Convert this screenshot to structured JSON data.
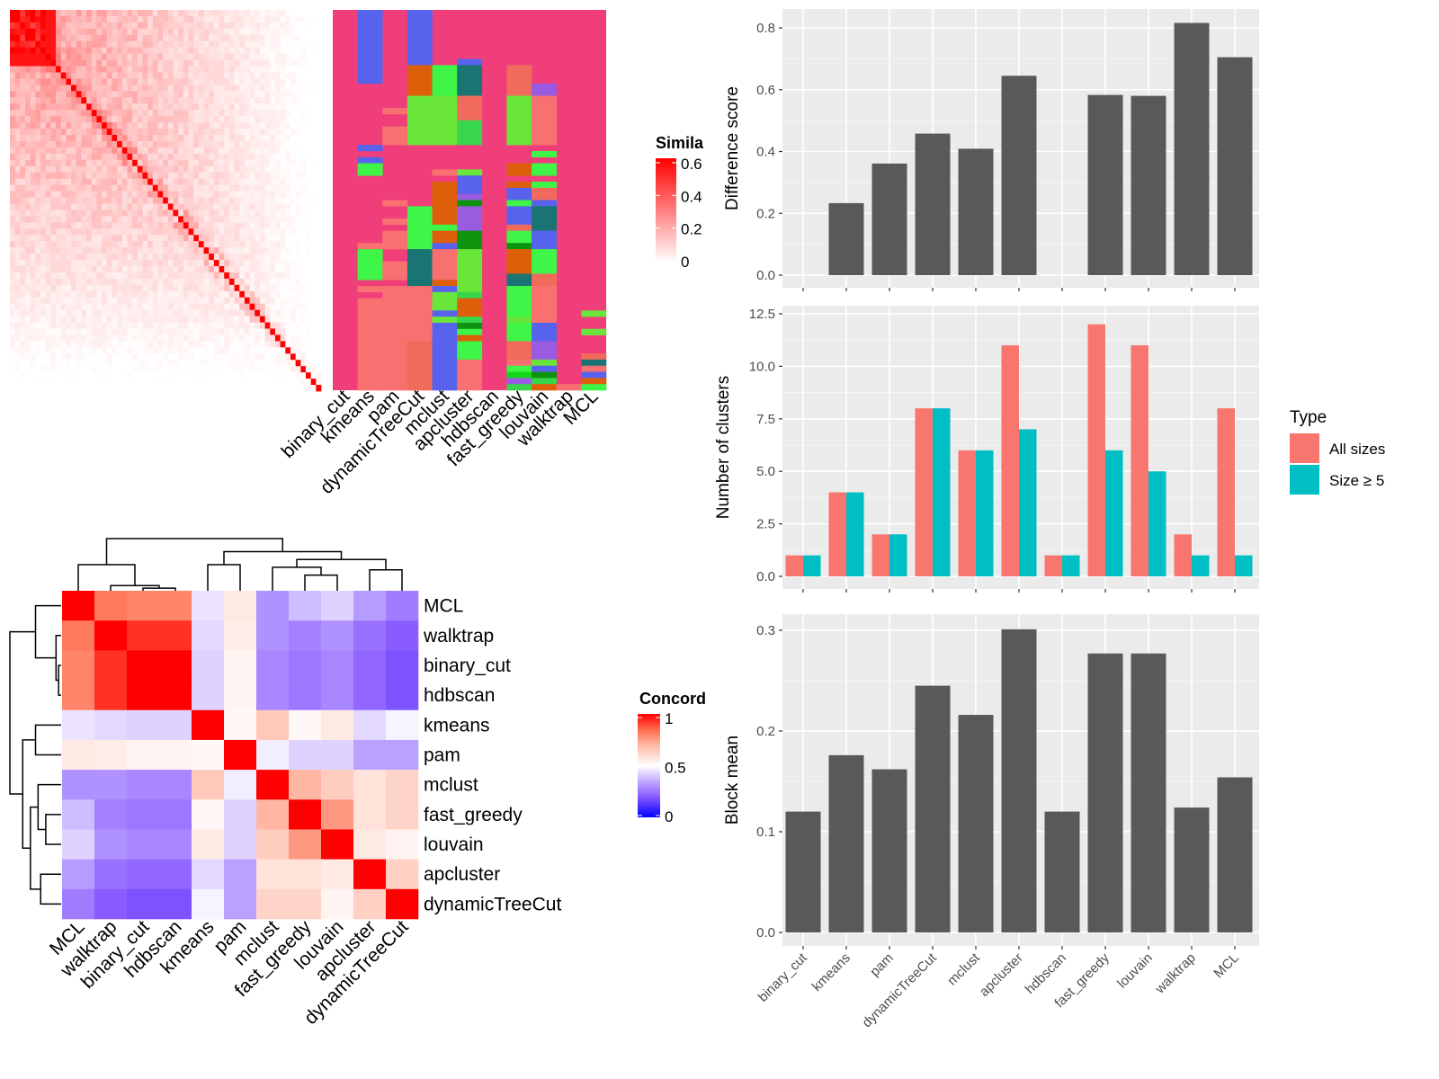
{
  "chart_data": [
    {
      "type": "heatmap",
      "id": "similarity",
      "legend": {
        "title": "Simila",
        "ticks": [
          "0",
          "0.2",
          "0.4",
          "0.6"
        ],
        "tick_values": [
          0,
          0.2,
          0.4,
          0.6
        ],
        "low_color": "#ffffff",
        "high_color": "#ff0000"
      }
    },
    {
      "type": "heatmap",
      "id": "cluster_membership",
      "columns": [
        "binary_cut",
        "kmeans",
        "pam",
        "dynamicTreeCut",
        "mclust",
        "apcluster",
        "hdbscan",
        "fast_greedy",
        "louvain",
        "walktrap",
        "MCL"
      ],
      "rows": 62,
      "background_color": "#f03e7a",
      "palette": {
        "B": "#5763ec",
        "O": "#de5f0a",
        "G": "#3ff547",
        "T": "#1a7474",
        "S": "#f06b5c",
        "L": "#6ae63a",
        "M": "#37d64b",
        "V": "#995be0",
        "D": "#0e930e",
        "R": "#f87070",
        "E": "#16d716"
      },
      "segments": [
        [],
        [
          [
            0,
            12,
            "B"
          ],
          [
            22,
            23,
            "B"
          ],
          [
            24,
            25,
            "B"
          ],
          [
            25,
            27,
            "G"
          ],
          [
            38,
            39,
            "R"
          ],
          [
            39,
            44,
            "G"
          ],
          [
            45,
            46,
            "R"
          ],
          [
            47,
            62,
            "R"
          ]
        ],
        [
          [
            16,
            17,
            "R"
          ],
          [
            19,
            22,
            "R"
          ],
          [
            31,
            32,
            "R"
          ],
          [
            34,
            35,
            "R"
          ],
          [
            36,
            39,
            "R"
          ],
          [
            41,
            44,
            "R"
          ],
          [
            45,
            62,
            "R"
          ]
        ],
        [
          [
            0,
            9,
            "B"
          ],
          [
            9,
            14,
            "O"
          ],
          [
            14,
            22,
            "L"
          ],
          [
            32,
            39,
            "G"
          ],
          [
            39,
            45,
            "T"
          ],
          [
            45,
            54,
            "R"
          ],
          [
            54,
            62,
            "S"
          ]
        ],
        [
          [
            9,
            14,
            "G"
          ],
          [
            14,
            22,
            "L"
          ],
          [
            26,
            27,
            "R"
          ],
          [
            28,
            35,
            "O"
          ],
          [
            35,
            36,
            "G"
          ],
          [
            36,
            38,
            "O"
          ],
          [
            38,
            39,
            "B"
          ],
          [
            39,
            44,
            "R"
          ],
          [
            44,
            45,
            "O"
          ],
          [
            45,
            46,
            "B"
          ],
          [
            46,
            49,
            "L"
          ],
          [
            49,
            50,
            "B"
          ],
          [
            50,
            51,
            "L"
          ],
          [
            51,
            62,
            "B"
          ]
        ],
        [
          [
            8,
            9,
            "B"
          ],
          [
            9,
            14,
            "T"
          ],
          [
            14,
            18,
            "S"
          ],
          [
            18,
            22,
            "M"
          ],
          [
            26,
            27,
            "L"
          ],
          [
            27,
            30,
            "B"
          ],
          [
            30,
            31,
            "V"
          ],
          [
            31,
            32,
            "D"
          ],
          [
            32,
            36,
            "V"
          ],
          [
            36,
            39,
            "D"
          ],
          [
            39,
            46,
            "L"
          ],
          [
            46,
            47,
            "M"
          ],
          [
            47,
            50,
            "O"
          ],
          [
            50,
            51,
            "M"
          ],
          [
            51,
            52,
            "D"
          ],
          [
            52,
            53,
            "G"
          ],
          [
            53,
            54,
            "O"
          ],
          [
            54,
            57,
            "G"
          ],
          [
            57,
            62,
            "R"
          ]
        ],
        [],
        [
          [
            9,
            14,
            "S"
          ],
          [
            14,
            22,
            "L"
          ],
          [
            25,
            27,
            "O"
          ],
          [
            28,
            29,
            "O"
          ],
          [
            29,
            31,
            "B"
          ],
          [
            31,
            32,
            "G"
          ],
          [
            32,
            35,
            "B"
          ],
          [
            35,
            36,
            "S"
          ],
          [
            36,
            38,
            "G"
          ],
          [
            38,
            39,
            "D"
          ],
          [
            39,
            43,
            "O"
          ],
          [
            43,
            45,
            "T"
          ],
          [
            45,
            50,
            "G"
          ],
          [
            50,
            51,
            "L"
          ],
          [
            51,
            54,
            "G"
          ],
          [
            54,
            57,
            "S"
          ],
          [
            57,
            58,
            "R"
          ],
          [
            58,
            59,
            "G"
          ],
          [
            59,
            60,
            "E"
          ],
          [
            60,
            61,
            "V"
          ],
          [
            61,
            62,
            "M"
          ]
        ],
        [
          [
            12,
            14,
            "V"
          ],
          [
            14,
            22,
            "R"
          ],
          [
            23,
            24,
            "G"
          ],
          [
            25,
            27,
            "G"
          ],
          [
            28,
            29,
            "G"
          ],
          [
            29,
            31,
            "S"
          ],
          [
            31,
            32,
            "B"
          ],
          [
            32,
            36,
            "T"
          ],
          [
            36,
            39,
            "B"
          ],
          [
            39,
            43,
            "G"
          ],
          [
            43,
            45,
            "S"
          ],
          [
            45,
            51,
            "R"
          ],
          [
            51,
            54,
            "B"
          ],
          [
            54,
            57,
            "V"
          ],
          [
            57,
            58,
            "L"
          ],
          [
            58,
            59,
            "B"
          ],
          [
            59,
            60,
            "D"
          ],
          [
            60,
            61,
            "M"
          ],
          [
            61,
            62,
            "O"
          ]
        ],
        [
          [
            61,
            62,
            "R"
          ]
        ],
        [
          [
            49,
            50,
            "L"
          ],
          [
            52,
            53,
            "L"
          ],
          [
            56,
            57,
            "S"
          ],
          [
            57,
            58,
            "T"
          ],
          [
            58,
            59,
            "R"
          ],
          [
            59,
            60,
            "B"
          ],
          [
            60,
            61,
            "O"
          ],
          [
            61,
            62,
            "G"
          ]
        ]
      ]
    },
    {
      "type": "heatmap",
      "id": "concordance",
      "labels": [
        "MCL",
        "walktrap",
        "binary_cut",
        "hdbscan",
        "kmeans",
        "pam",
        "mclust",
        "fast_greedy",
        "louvain",
        "apcluster",
        "dynamicTreeCut"
      ],
      "matrix": [
        [
          1,
          0.82,
          0.8,
          0.8,
          0.45,
          0.56,
          0.3,
          0.38,
          0.42,
          0.32,
          0.26
        ],
        [
          0.82,
          1,
          0.93,
          0.93,
          0.43,
          0.55,
          0.3,
          0.27,
          0.3,
          0.24,
          0.2
        ],
        [
          0.8,
          0.93,
          1,
          1,
          0.42,
          0.53,
          0.28,
          0.25,
          0.28,
          0.22,
          0.18
        ],
        [
          0.8,
          0.93,
          1,
          1,
          0.42,
          0.53,
          0.28,
          0.25,
          0.28,
          0.22,
          0.18
        ],
        [
          0.45,
          0.43,
          0.42,
          0.42,
          1,
          0.52,
          0.65,
          0.52,
          0.56,
          0.43,
          0.48
        ],
        [
          0.56,
          0.55,
          0.53,
          0.53,
          0.52,
          1,
          0.47,
          0.42,
          0.42,
          0.33,
          0.33
        ],
        [
          0.3,
          0.3,
          0.28,
          0.28,
          0.65,
          0.47,
          1,
          0.7,
          0.64,
          0.58,
          0.62
        ],
        [
          0.38,
          0.27,
          0.25,
          0.25,
          0.52,
          0.42,
          0.7,
          1,
          0.76,
          0.58,
          0.62
        ],
        [
          0.42,
          0.3,
          0.28,
          0.28,
          0.56,
          0.42,
          0.64,
          0.76,
          1,
          0.56,
          0.53
        ],
        [
          0.32,
          0.24,
          0.22,
          0.22,
          0.43,
          0.33,
          0.58,
          0.58,
          0.56,
          1,
          0.63
        ],
        [
          0.26,
          0.2,
          0.18,
          0.18,
          0.48,
          0.33,
          0.62,
          0.62,
          0.53,
          0.63,
          1
        ]
      ],
      "legend": {
        "title": "Concord",
        "ticks": [
          "0",
          "0.5",
          "1"
        ],
        "tick_values": [
          0,
          0.5,
          1
        ],
        "low_color": "#0000ff",
        "mid_color": "#ffffff",
        "high_color": "#ff0000"
      }
    },
    {
      "type": "bar",
      "id": "difference_score",
      "categories": [
        "binary_cut",
        "kmeans",
        "pam",
        "dynamicTreeCut",
        "mclust",
        "apcluster",
        "hdbscan",
        "fast_greedy",
        "louvain",
        "walktrap",
        "MCL"
      ],
      "values": [
        null,
        0.233,
        0.361,
        0.458,
        0.409,
        0.645,
        null,
        0.583,
        0.58,
        0.816,
        0.705
      ],
      "ylabel": "Difference score",
      "yticks": [
        "0.0",
        "0.2",
        "0.4",
        "0.6",
        "0.8"
      ],
      "ylim": [
        -0.04,
        0.84
      ],
      "bar_color": "#595959",
      "grid": true
    },
    {
      "type": "bar",
      "id": "number_of_clusters",
      "categories": [
        "binary_cut",
        "kmeans",
        "pam",
        "dynamicTreeCut",
        "mclust",
        "apcluster",
        "hdbscan",
        "fast_greedy",
        "louvain",
        "walktrap",
        "MCL"
      ],
      "series": [
        {
          "name": "All sizes",
          "color": "#f8766d",
          "values": [
            1,
            4,
            2,
            8,
            6,
            11,
            1,
            12,
            11,
            2,
            8
          ]
        },
        {
          "name": "Size ≥ 5",
          "color": "#00bfc4",
          "values": [
            1,
            4,
            2,
            8,
            6,
            7,
            1,
            6,
            5,
            1,
            1
          ]
        }
      ],
      "ylabel": "Number of clusters",
      "yticks": [
        "0.0",
        "2.5",
        "5.0",
        "7.5",
        "10.0",
        "12.5"
      ],
      "ylim": [
        -0.6,
        12.6
      ],
      "legend": {
        "title": "Type",
        "placement": "right"
      },
      "grid": true
    },
    {
      "type": "bar",
      "id": "block_mean",
      "categories": [
        "binary_cut",
        "kmeans",
        "pam",
        "dynamicTreeCut",
        "mclust",
        "apcluster",
        "hdbscan",
        "fast_greedy",
        "louvain",
        "walktrap",
        "MCL"
      ],
      "values": [
        0.12,
        0.176,
        0.162,
        0.245,
        0.216,
        0.301,
        0.12,
        0.277,
        0.277,
        0.124,
        0.154
      ],
      "ylabel": "Block mean",
      "yticks": [
        "0.0",
        "0.1",
        "0.2",
        "0.3"
      ],
      "ylim": [
        -0.015,
        0.315
      ],
      "bar_color": "#595959",
      "grid": true
    }
  ]
}
